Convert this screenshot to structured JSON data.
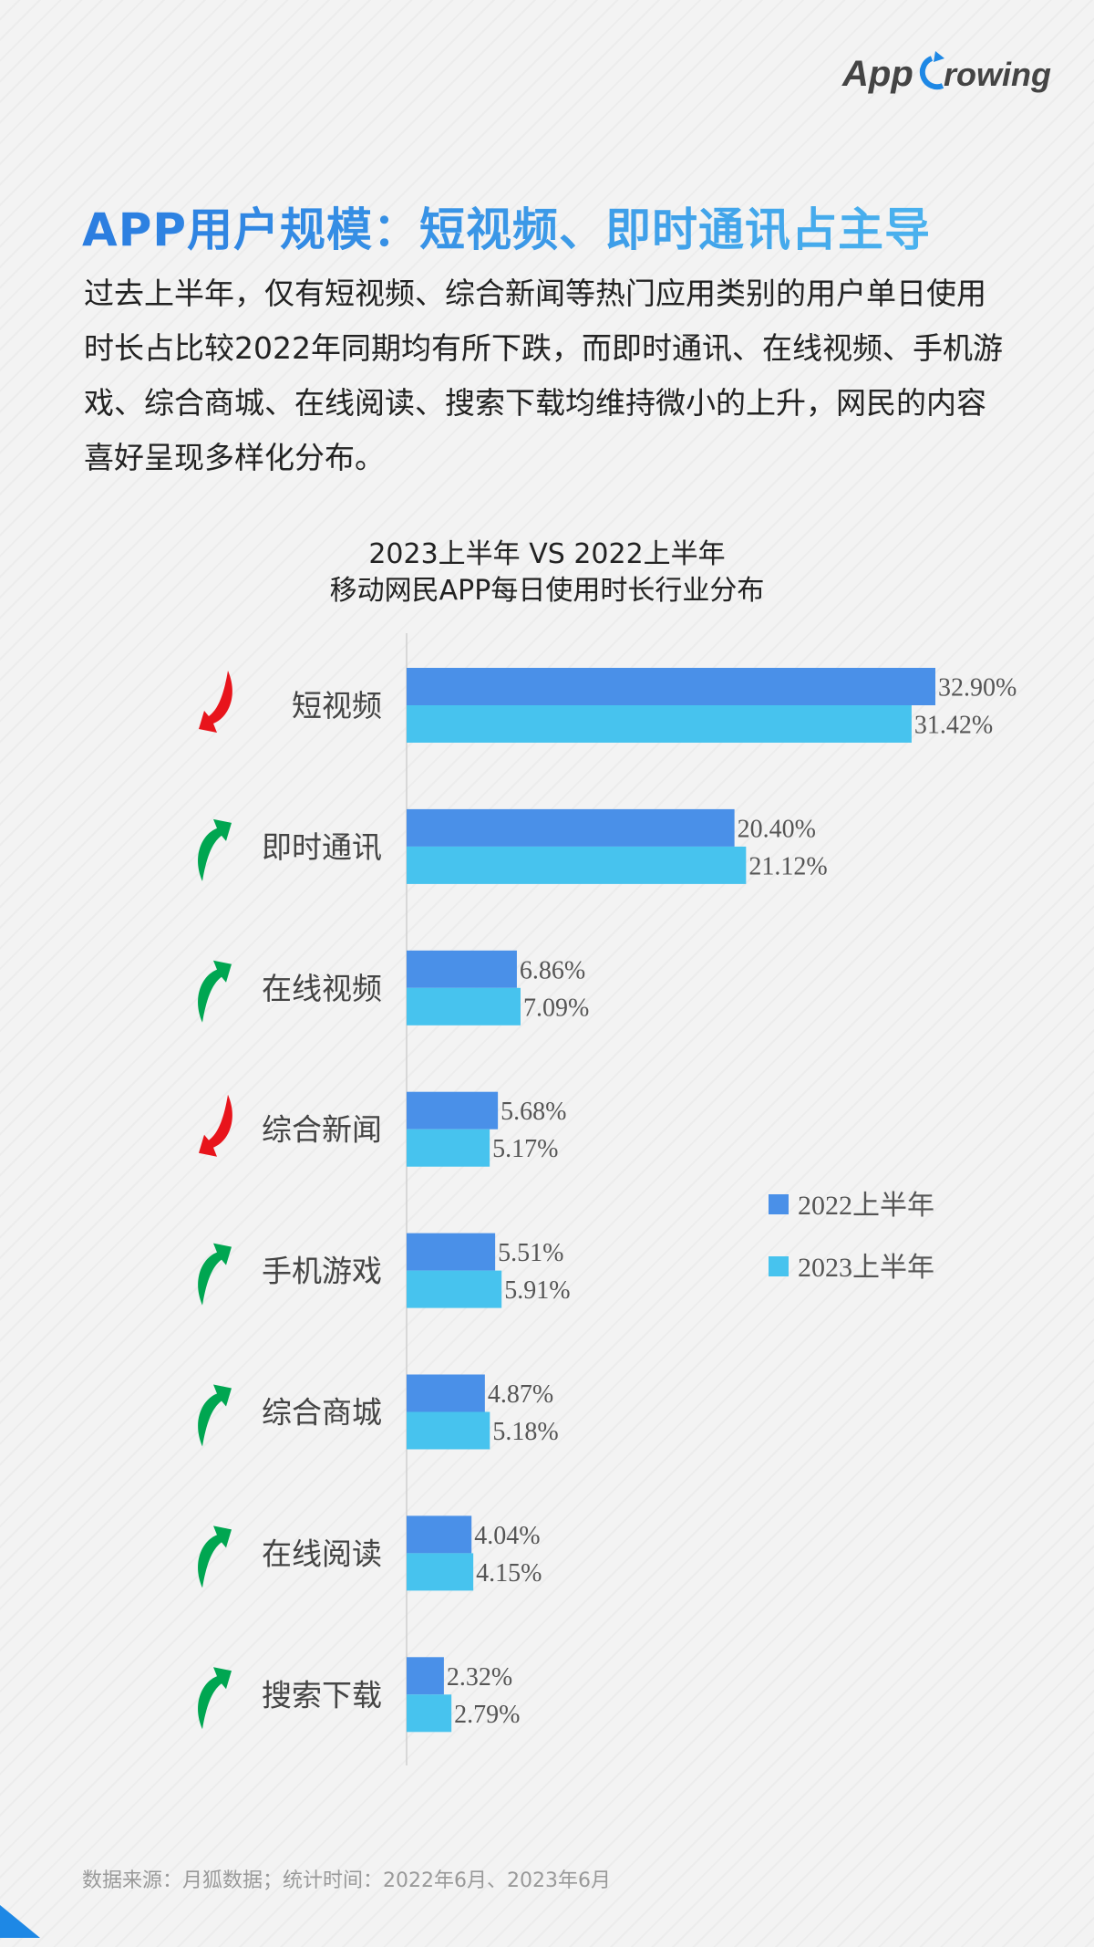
{
  "logo_text": "AppGrowing",
  "title": "APP用户规模：短视频、即时通讯占主导",
  "paragraph": "过去上半年，仅有短视频、综合新闻等热门应用类别的用户单日使用时长占比较2022年同期均有所下跌，而即时通讯、在线视频、手机游戏、综合商城、在线阅读、搜索下载均维持微小的上升，网民的内容喜好呈现多样化分布。",
  "footer": "数据来源：月狐数据；统计时间：2022年6月、2023年6月",
  "colors": {
    "series_2022": "#4a90e8",
    "series_2023": "#47c3ee",
    "up": "#00a651",
    "down": "#e8141b",
    "title_start": "#2b7de0",
    "title_end": "#4ab2ee"
  },
  "chart_data": {
    "type": "bar",
    "orientation": "horizontal",
    "title": [
      "2023上半年 VS 2022上半年",
      "移动网民APP每日使用时长行业分布"
    ],
    "categories": [
      "短视频",
      "即时通讯",
      "在线视频",
      "综合新闻",
      "手机游戏",
      "综合商城",
      "在线阅读",
      "搜索下载"
    ],
    "trend_icons": [
      "down-arrow",
      "up-arrow",
      "up-arrow",
      "down-arrow",
      "up-arrow",
      "up-arrow",
      "up-arrow",
      "up-arrow"
    ],
    "series": [
      {
        "name": "2022上半年",
        "values": [
          32.9,
          20.4,
          6.86,
          5.68,
          5.51,
          4.87,
          4.04,
          2.32
        ],
        "labels": [
          "32.90%",
          "20.40%",
          "6.86%",
          "5.68%",
          "5.51%",
          "4.87%",
          "4.04%",
          "2.32%"
        ]
      },
      {
        "name": "2023上半年",
        "values": [
          31.42,
          21.12,
          7.09,
          5.17,
          5.91,
          5.18,
          4.15,
          2.79
        ],
        "labels": [
          "31.42%",
          "21.12%",
          "7.09%",
          "5.17%",
          "5.91%",
          "5.18%",
          "4.15%",
          "2.79%"
        ]
      }
    ],
    "unit": "%",
    "xlim": [
      0,
      35
    ],
    "grid": false,
    "legend": "right"
  }
}
